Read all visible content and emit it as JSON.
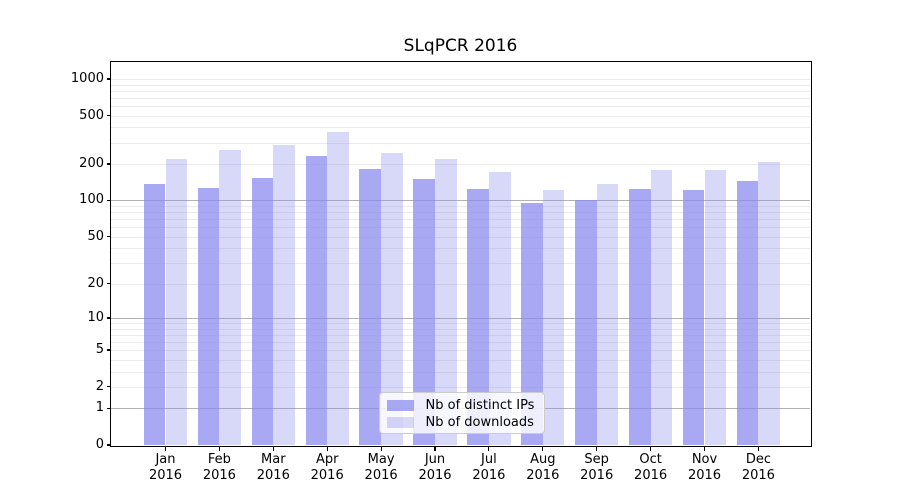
{
  "chart_data": {
    "type": "bar",
    "title": "SLqPCR 2016",
    "months": [
      "Jan",
      "Feb",
      "Mar",
      "Apr",
      "May",
      "Jun",
      "Jul",
      "Aug",
      "Sep",
      "Oct",
      "Nov",
      "Dec"
    ],
    "year_label": "2016",
    "series": [
      {
        "name": "Nb of distinct IPs",
        "color": "rgba(136,136,238,0.72)",
        "values": [
          137,
          126,
          153,
          233,
          182,
          150,
          124,
          96,
          101,
          125,
          122,
          146
        ]
      },
      {
        "name": "Nb of downloads",
        "color": "rgba(136,136,238,0.33)",
        "values": [
          220,
          259,
          288,
          368,
          247,
          219,
          172,
          121,
          137,
          180,
          178,
          208
        ]
      }
    ],
    "y_axis": {
      "scale": "log10(value+1)",
      "tick_values": [
        0,
        1,
        2,
        5,
        10,
        20,
        50,
        100,
        200,
        500,
        1000
      ],
      "minor_grid_values": [
        2,
        3,
        4,
        5,
        6,
        7,
        8,
        9,
        20,
        30,
        40,
        50,
        60,
        70,
        80,
        90,
        200,
        300,
        400,
        500,
        600,
        700,
        800,
        900,
        1000
      ],
      "major_grid_values": [
        1,
        10,
        100
      ],
      "ylim": [
        0,
        1380
      ],
      "grid": "on"
    },
    "legend": {
      "position": "lower-center"
    },
    "colors": {
      "bar_ips": "rgba(136,136,238,0.72)",
      "bar_downloads": "rgba(136,136,238,0.33)",
      "grid_minor": "#ebebeb",
      "grid_major": "#b3b3b3",
      "spine": "#000000"
    }
  }
}
